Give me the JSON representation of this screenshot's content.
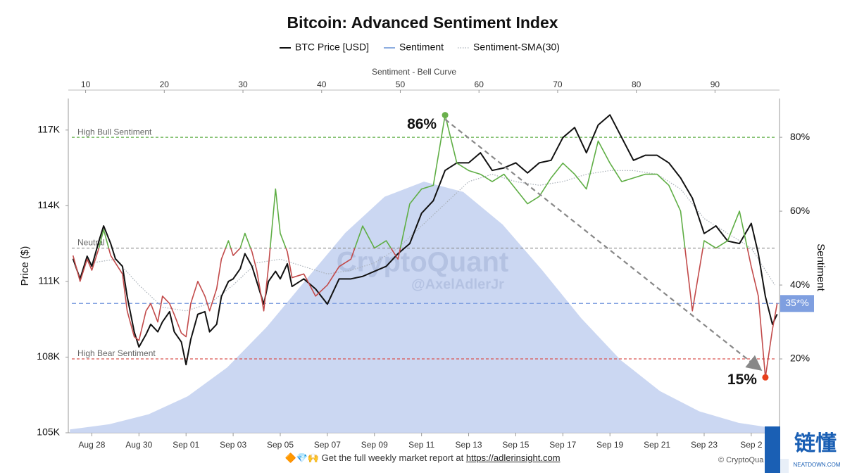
{
  "chart_data": {
    "type": "line",
    "title": "Bitcoin: Advanced Sentiment Index",
    "x2_label": "Sentiment - Bell Curve",
    "y_label": "Price ($)",
    "y2_label": "Sentiment",
    "xlim": [
      -1,
      29.2
    ],
    "xticks": [
      {
        "value": 0,
        "label": "Aug 28"
      },
      {
        "value": 2,
        "label": "Aug 30"
      },
      {
        "value": 4,
        "label": "Sep 01"
      },
      {
        "value": 6,
        "label": "Sep 03"
      },
      {
        "value": 8,
        "label": "Sep 05"
      },
      {
        "value": 10,
        "label": "Sep 07"
      },
      {
        "value": 12,
        "label": "Sep 09"
      },
      {
        "value": 14,
        "label": "Sep 11"
      },
      {
        "value": 16,
        "label": "Sep 13"
      },
      {
        "value": 18,
        "label": "Sep 15"
      },
      {
        "value": 20,
        "label": "Sep 17"
      },
      {
        "value": 22,
        "label": "Sep 19"
      },
      {
        "value": 24,
        "label": "Sep 21"
      },
      {
        "value": 26,
        "label": "Sep 23"
      },
      {
        "value": 28,
        "label": "Sep 2"
      }
    ],
    "ylim": [
      105000,
      118250
    ],
    "yticks": [
      {
        "value": 105000,
        "label": "105K"
      },
      {
        "value": 108000,
        "label": "108K"
      },
      {
        "value": 111000,
        "label": "111K"
      },
      {
        "value": 114000,
        "label": "114K"
      },
      {
        "value": 117000,
        "label": "117K"
      }
    ],
    "y2lim": [
      0,
      90.5
    ],
    "y2ticks": [
      {
        "value": 20,
        "label": "20%"
      },
      {
        "value": 40,
        "label": "40%"
      },
      {
        "value": 60,
        "label": "60%"
      },
      {
        "value": 80,
        "label": "80%"
      }
    ],
    "x2lim": [
      7.8,
      98.2
    ],
    "x2ticks": [
      10,
      20,
      30,
      40,
      50,
      60,
      70,
      80,
      90
    ],
    "series": [
      {
        "name": "BTC Price [USD]",
        "color": "#111111",
        "x": [
          -0.8,
          -0.5,
          -0.2,
          0,
          0.3,
          0.5,
          0.8,
          1,
          1.3,
          1.5,
          1.8,
          2,
          2.3,
          2.5,
          2.8,
          3,
          3.3,
          3.5,
          3.8,
          4,
          4.2,
          4.5,
          4.8,
          5,
          5.3,
          5.5,
          5.8,
          6,
          6.3,
          6.5,
          6.8,
          7,
          7.3,
          7.5,
          7.8,
          8,
          8.3,
          8.5,
          9,
          9.5,
          10,
          10.5,
          11,
          11.5,
          12,
          12.5,
          13,
          13.5,
          14,
          14.5,
          15,
          15.5,
          16,
          16.5,
          17,
          17.5,
          18,
          18.5,
          19,
          19.5,
          20,
          20.5,
          21,
          21.5,
          22,
          22.5,
          23,
          23.5,
          24,
          24.5,
          25,
          25.5,
          26,
          26.5,
          27,
          27.5,
          28,
          28.3,
          28.6,
          28.9,
          29.1
        ],
        "values": [
          111900,
          111100,
          112000,
          111600,
          112600,
          113200,
          112500,
          111900,
          111600,
          110400,
          109000,
          108400,
          108900,
          109300,
          109000,
          109400,
          109800,
          109000,
          108600,
          107700,
          108700,
          109700,
          109800,
          109000,
          109300,
          110400,
          111000,
          111100,
          111500,
          112100,
          111600,
          111000,
          110100,
          111000,
          111400,
          111100,
          111700,
          110800,
          111100,
          110700,
          110100,
          111100,
          111100,
          111200,
          111400,
          111600,
          112100,
          112500,
          113700,
          114200,
          115400,
          115700,
          115700,
          116100,
          115400,
          115500,
          115700,
          115300,
          115700,
          115800,
          116700,
          117100,
          116100,
          117200,
          117600,
          116700,
          115800,
          116000,
          116000,
          115700,
          115100,
          114300,
          112900,
          113200,
          112600,
          112500,
          113300,
          112100,
          110400,
          109300,
          109700
        ]
      },
      {
        "name": "Sentiment",
        "color": "#8eaee0",
        "axis": "y2",
        "split_value": 50,
        "color_above": "#5fae45",
        "color_below": "#c24a4a",
        "x": [
          -0.8,
          -0.5,
          -0.2,
          0,
          0.3,
          0.5,
          0.8,
          1,
          1.3,
          1.5,
          1.8,
          2,
          2.3,
          2.5,
          2.8,
          3,
          3.3,
          3.5,
          3.8,
          4,
          4.2,
          4.5,
          4.8,
          5,
          5.3,
          5.5,
          5.8,
          6,
          6.3,
          6.5,
          6.8,
          7,
          7.3,
          7.5,
          7.8,
          8,
          8.3,
          8.5,
          9,
          9.5,
          10,
          10.5,
          11,
          11.5,
          12,
          12.5,
          13,
          13.5,
          14,
          14.5,
          15,
          15.5,
          16,
          16.5,
          17,
          17.5,
          18,
          18.5,
          19,
          19.5,
          20,
          20.5,
          21,
          21.5,
          22,
          22.5,
          23,
          23.5,
          24,
          24.5,
          25,
          25.5,
          26,
          26.5,
          27,
          27.5,
          28,
          28.3,
          28.6,
          28.9,
          29.1
        ],
        "values": [
          48,
          41,
          47,
          44,
          50,
          55,
          48,
          46,
          43,
          33,
          26,
          25,
          33,
          35,
          30,
          37,
          35,
          32,
          27,
          26,
          35,
          41,
          37,
          33,
          39,
          47,
          52,
          48,
          50,
          54,
          49,
          44,
          33,
          45,
          66,
          54,
          49,
          42,
          43,
          37,
          40,
          45,
          47,
          56,
          50,
          52,
          47,
          62,
          66,
          67,
          86,
          73,
          71,
          70,
          68,
          70,
          66,
          62,
          64,
          69,
          73,
          70,
          66,
          79,
          73,
          68,
          69,
          70,
          70,
          67,
          60,
          33,
          52,
          50,
          52,
          60,
          45,
          37,
          15,
          28,
          35
        ]
      },
      {
        "name": "Sentiment-SMA(30)",
        "color": "#a9b0b8",
        "axis": "y2",
        "dashed": true,
        "x": [
          0,
          1,
          2,
          3,
          4,
          5,
          6,
          7,
          8,
          9,
          10,
          11,
          12,
          13,
          14,
          15,
          16,
          17,
          18,
          19,
          20,
          21,
          22,
          23,
          24,
          25,
          26,
          27,
          28,
          29
        ],
        "values": [
          46,
          47,
          40,
          34,
          33,
          35,
          40,
          46,
          47,
          45,
          43,
          44,
          46,
          50,
          56,
          62,
          68,
          70,
          68,
          67,
          68,
          70,
          71,
          71,
          70,
          66,
          58,
          54,
          50,
          40
        ]
      }
    ],
    "bell_curve": {
      "color": "#c5d3f1",
      "axis": "y2",
      "x": [
        8,
        13,
        18,
        23,
        28,
        33,
        38,
        43,
        48,
        53,
        58,
        63,
        68,
        73,
        78,
        83,
        88,
        93,
        98
      ],
      "values": [
        0.9,
        2.3,
        5.0,
        9.9,
        17.7,
        28.6,
        41.4,
        54.1,
        63.9,
        68.0,
        65.2,
        56.4,
        44.1,
        31.0,
        19.7,
        11.3,
        5.8,
        2.7,
        1.1
      ]
    },
    "reference_lines": [
      {
        "label": "High Bull Sentiment",
        "value": 80,
        "color": "#5fae45"
      },
      {
        "label": "Neutral",
        "value": 50,
        "color": "#8a8a8a"
      },
      {
        "label": "High Bear Sentiment",
        "value": 20,
        "color": "#d9534f"
      }
    ],
    "current_line": {
      "value": 35,
      "label": "35*%",
      "color": "#7f9fe0"
    },
    "annotations": [
      {
        "text": "86%",
        "x": 15,
        "value": 86,
        "color": "#6ab04c"
      },
      {
        "text": "15%",
        "x": 28.6,
        "value": 15,
        "color": "#e8401c"
      }
    ],
    "watermark": [
      "CryptoQuant",
      "@AxelAdlerJr"
    ]
  },
  "footer": {
    "icons": "🔶💎🙌",
    "text": "Get the full weekly market report at",
    "link": "https://adlerinsight.com",
    "credit": "© CryptoQua"
  },
  "logo": {
    "cn": "链懂",
    "en": "NEATDOWN.COM"
  }
}
